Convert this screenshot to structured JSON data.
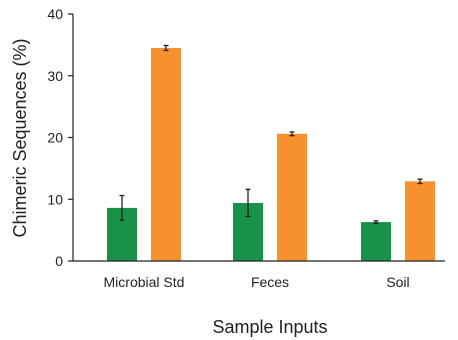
{
  "chart_data": {
    "type": "bar",
    "title": "",
    "xlabel": "Sample Inputs",
    "ylabel": "Chimeric Sequences (%)",
    "categories": [
      "Microbial Std",
      "Feces",
      "Soil"
    ],
    "ylim": [
      0,
      40
    ],
    "yticks": [
      "0",
      "10",
      "20",
      "30",
      "40"
    ],
    "grid": false,
    "legend": "none",
    "series": [
      {
        "color": "#1a9148",
        "values": [
          8.6,
          9.4,
          6.3
        ],
        "errors": [
          2.0,
          2.2,
          0.2
        ]
      },
      {
        "color": "#f5922f",
        "values": [
          34.5,
          20.6,
          12.9
        ],
        "errors": [
          0.4,
          0.3,
          0.35
        ]
      }
    ]
  }
}
